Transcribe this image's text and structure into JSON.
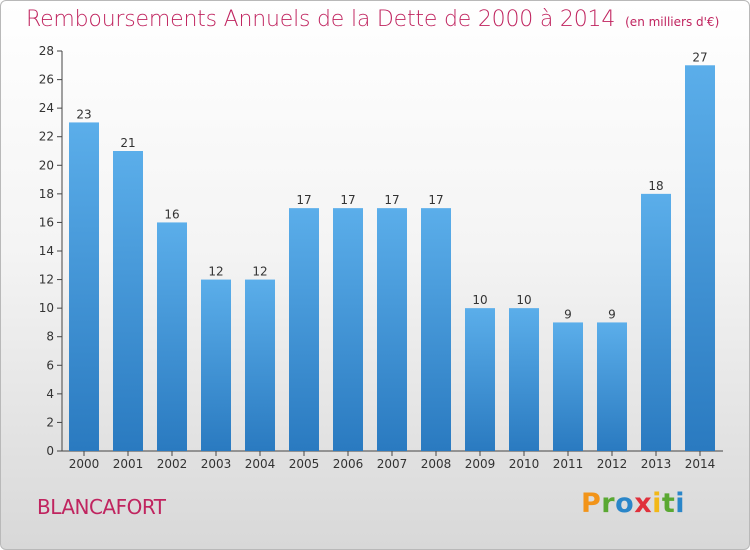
{
  "header": {
    "title": "Remboursements Annuels de la Dette de 2000 à 2014",
    "unit": "(en milliers d'€)"
  },
  "footer": {
    "town": "BLANCAFORT",
    "logo": "Proxiti"
  },
  "colors": {
    "title": "#c0245f",
    "bar_top": "#5baeea",
    "bar_bottom": "#2a7ac0",
    "logo_letters": [
      "#f29419",
      "#5aa832",
      "#2a86c9",
      "#e0303b",
      "#f2b817",
      "#5aa832",
      "#2a86c9"
    ]
  },
  "chart_data": {
    "type": "bar",
    "categories": [
      "2000",
      "2001",
      "2002",
      "2003",
      "2004",
      "2005",
      "2006",
      "2007",
      "2008",
      "2009",
      "2010",
      "2011",
      "2012",
      "2013",
      "2014"
    ],
    "values": [
      23,
      21,
      16,
      12,
      12,
      17,
      17,
      17,
      17,
      10,
      10,
      9,
      9,
      18,
      27
    ],
    "ylim": [
      0,
      28
    ],
    "yticks": [
      0,
      2,
      4,
      6,
      8,
      10,
      12,
      14,
      16,
      18,
      20,
      22,
      24,
      26,
      28
    ],
    "grid": false,
    "legend": "none"
  }
}
